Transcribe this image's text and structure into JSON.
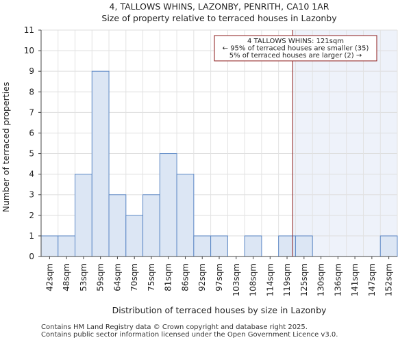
{
  "chart_data": {
    "type": "bar",
    "title": "4, TALLOWS WHINS, LAZONBY, PENRITH, CA10 1AR",
    "subtitle": "Size of property relative to terraced houses in Lazonby",
    "xlabel": "Distribution of terraced houses by size in Lazonby",
    "ylabel": "Number of terraced properties",
    "categories": [
      "42sqm",
      "48sqm",
      "53sqm",
      "59sqm",
      "64sqm",
      "70sqm",
      "75sqm",
      "81sqm",
      "86sqm",
      "92sqm",
      "97sqm",
      "103sqm",
      "108sqm",
      "114sqm",
      "119sqm",
      "125sqm",
      "130sqm",
      "136sqm",
      "141sqm",
      "147sqm",
      "152sqm"
    ],
    "values": [
      1,
      1,
      4,
      9,
      3,
      2,
      3,
      5,
      4,
      1,
      1,
      0,
      1,
      0,
      1,
      1,
      0,
      0,
      0,
      0,
      1
    ],
    "ylim": [
      0,
      11
    ],
    "yticks": [
      0,
      1,
      2,
      3,
      4,
      5,
      6,
      7,
      8,
      9,
      10,
      11
    ],
    "grid": true,
    "bar_color": "#dce6f4",
    "bar_edge_color": "#5b87c5",
    "marker": {
      "value_sqm": 121,
      "color": "#8b1a1a",
      "highlight_color": "#eef2fa",
      "annotation_lines": [
        "4 TALLOWS WHINS: 121sqm",
        "← 95% of terraced houses are smaller (35)",
        "5% of terraced houses are larger (2) →"
      ]
    }
  },
  "footer": {
    "line1": "Contains HM Land Registry data © Crown copyright and database right 2025.",
    "line2": "Contains public sector information licensed under the Open Government Licence v3.0."
  }
}
